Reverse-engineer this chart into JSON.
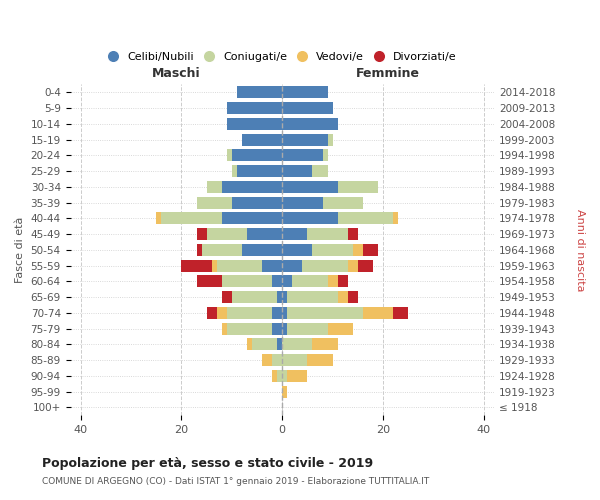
{
  "age_groups": [
    "100+",
    "95-99",
    "90-94",
    "85-89",
    "80-84",
    "75-79",
    "70-74",
    "65-69",
    "60-64",
    "55-59",
    "50-54",
    "45-49",
    "40-44",
    "35-39",
    "30-34",
    "25-29",
    "20-24",
    "15-19",
    "10-14",
    "5-9",
    "0-4"
  ],
  "birth_years": [
    "≤ 1918",
    "1919-1923",
    "1924-1928",
    "1929-1933",
    "1934-1938",
    "1939-1943",
    "1944-1948",
    "1949-1953",
    "1954-1958",
    "1959-1963",
    "1964-1968",
    "1969-1973",
    "1974-1978",
    "1979-1983",
    "1984-1988",
    "1989-1993",
    "1994-1998",
    "1999-2003",
    "2004-2008",
    "2009-2013",
    "2014-2018"
  ],
  "maschi_celibi": [
    0,
    0,
    0,
    0,
    1,
    2,
    2,
    1,
    2,
    4,
    8,
    7,
    12,
    10,
    12,
    9,
    10,
    8,
    11,
    11,
    9
  ],
  "maschi_coniugati": [
    0,
    0,
    1,
    2,
    5,
    9,
    9,
    9,
    10,
    9,
    8,
    8,
    12,
    7,
    3,
    1,
    1,
    0,
    0,
    0,
    0
  ],
  "maschi_vedovi": [
    0,
    0,
    1,
    2,
    1,
    1,
    2,
    0,
    0,
    1,
    0,
    0,
    1,
    0,
    0,
    0,
    0,
    0,
    0,
    0,
    0
  ],
  "maschi_divorziati": [
    0,
    0,
    0,
    0,
    0,
    0,
    2,
    2,
    5,
    6,
    1,
    2,
    0,
    0,
    0,
    0,
    0,
    0,
    0,
    0,
    0
  ],
  "femmine_celibi": [
    0,
    0,
    0,
    0,
    0,
    1,
    1,
    1,
    2,
    4,
    6,
    5,
    11,
    8,
    11,
    6,
    8,
    9,
    11,
    10,
    9
  ],
  "femmine_coniugati": [
    0,
    0,
    1,
    5,
    6,
    8,
    15,
    10,
    7,
    9,
    8,
    8,
    11,
    8,
    8,
    3,
    1,
    1,
    0,
    0,
    0
  ],
  "femmine_vedovi": [
    0,
    1,
    4,
    5,
    5,
    5,
    6,
    2,
    2,
    2,
    2,
    0,
    1,
    0,
    0,
    0,
    0,
    0,
    0,
    0,
    0
  ],
  "femmine_divorziati": [
    0,
    0,
    0,
    0,
    0,
    0,
    3,
    2,
    2,
    3,
    3,
    2,
    0,
    0,
    0,
    0,
    0,
    0,
    0,
    0,
    0
  ],
  "color_celibi": "#4d7fb5",
  "color_coniugati": "#c5d5a0",
  "color_vedovi": "#f0c060",
  "color_divorziati": "#c0222a",
  "title": "Popolazione per età, sesso e stato civile - 2019",
  "subtitle": "COMUNE DI ARGEGNO (CO) - Dati ISTAT 1° gennaio 2019 - Elaborazione TUTTITALIA.IT",
  "xlabel_left": "Maschi",
  "xlabel_right": "Femmine",
  "ylabel_left": "Fasce di età",
  "ylabel_right": "Anni di nascita",
  "legend_labels": [
    "Celibi/Nubili",
    "Coniugati/e",
    "Vedovi/e",
    "Divorziati/e"
  ],
  "xlim": 42,
  "background_color": "#ffffff",
  "grid_color": "#cccccc"
}
